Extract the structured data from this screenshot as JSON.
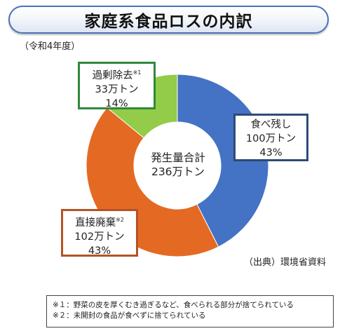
{
  "title": "家庭系食品ロスの内訳",
  "subtitle": "（令和4年度）",
  "chart_data": {
    "type": "pie",
    "variant": "donut",
    "center_label": [
      "発生量合計",
      "236万トン"
    ],
    "categories": [
      "食べ残し",
      "直接廃棄",
      "過剰除去"
    ],
    "values": [
      100,
      102,
      33
    ],
    "percentages": [
      43,
      43,
      14
    ],
    "unit": "万トン",
    "colors": [
      "#4472c4",
      "#e46a24",
      "#92cc48"
    ],
    "labels": [
      {
        "name": "食べ残し",
        "value_text": "100万トン",
        "pct_text": "43%",
        "note": ""
      },
      {
        "name": "直接廃棄",
        "value_text": "102万トン",
        "pct_text": "43%",
        "note": "※2"
      },
      {
        "name": "過剰除去",
        "value_text": "33万トン",
        "pct_text": "14%",
        "note": "※1"
      }
    ]
  },
  "source": "（出典）環境省資料",
  "notes": [
    "※１：野菜の皮を厚くむき過ぎるなど、食べられる部分が捨てられている",
    "※２：未開封の食品が食べずに捨てられている"
  ]
}
